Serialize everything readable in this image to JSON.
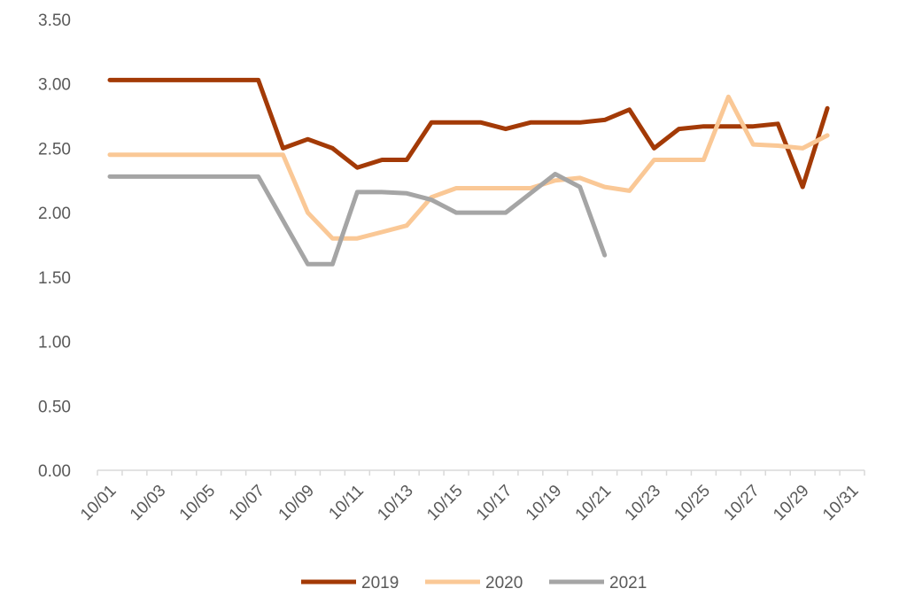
{
  "chart_data": {
    "type": "line",
    "title": "",
    "xlabel": "",
    "ylabel": "",
    "ylim": [
      0,
      3.5
    ],
    "yticks": [
      "0.00",
      "0.50",
      "1.00",
      "1.50",
      "2.00",
      "2.50",
      "3.00",
      "3.50"
    ],
    "grid": false,
    "legend_position": "bottom",
    "categories": [
      "10/01",
      "10/02",
      "10/03",
      "10/04",
      "10/05",
      "10/06",
      "10/07",
      "10/08",
      "10/09",
      "10/10",
      "10/11",
      "10/12",
      "10/13",
      "10/14",
      "10/15",
      "10/16",
      "10/17",
      "10/18",
      "10/19",
      "10/20",
      "10/21",
      "10/22",
      "10/23",
      "10/24",
      "10/25",
      "10/26",
      "10/27",
      "10/28",
      "10/29",
      "10/30",
      "10/31"
    ],
    "xtick_labels": [
      "10/01",
      "10/03",
      "10/05",
      "10/07",
      "10/09",
      "10/11",
      "10/13",
      "10/15",
      "10/17",
      "10/19",
      "10/21",
      "10/23",
      "10/25",
      "10/27",
      "10/29",
      "10/31"
    ],
    "series": [
      {
        "name": "2019",
        "color": "#a33a06",
        "values": [
          3.03,
          3.03,
          3.03,
          3.03,
          3.03,
          3.03,
          3.03,
          2.5,
          2.57,
          2.5,
          2.35,
          2.41,
          2.41,
          2.7,
          2.7,
          2.7,
          2.65,
          2.7,
          2.7,
          2.7,
          2.72,
          2.8,
          2.5,
          2.65,
          2.67,
          2.67,
          2.67,
          2.69,
          2.2,
          2.81,
          null
        ]
      },
      {
        "name": "2020",
        "color": "#fac896",
        "values": [
          2.45,
          2.45,
          2.45,
          2.45,
          2.45,
          2.45,
          2.45,
          2.45,
          2.0,
          1.8,
          1.8,
          1.85,
          1.9,
          2.12,
          2.19,
          2.19,
          2.19,
          2.19,
          2.25,
          2.27,
          2.2,
          2.17,
          2.41,
          2.41,
          2.41,
          2.9,
          2.53,
          2.52,
          2.5,
          2.6,
          null
        ]
      },
      {
        "name": "2021",
        "color": "#a5a5a5",
        "values": [
          2.28,
          2.28,
          2.28,
          2.28,
          2.28,
          2.28,
          2.28,
          1.94,
          1.6,
          1.6,
          2.16,
          2.16,
          2.15,
          2.1,
          2.0,
          2.0,
          2.0,
          2.15,
          2.3,
          2.2,
          1.67,
          null,
          null,
          null,
          null,
          null,
          null,
          null,
          null,
          null,
          null
        ]
      }
    ]
  }
}
